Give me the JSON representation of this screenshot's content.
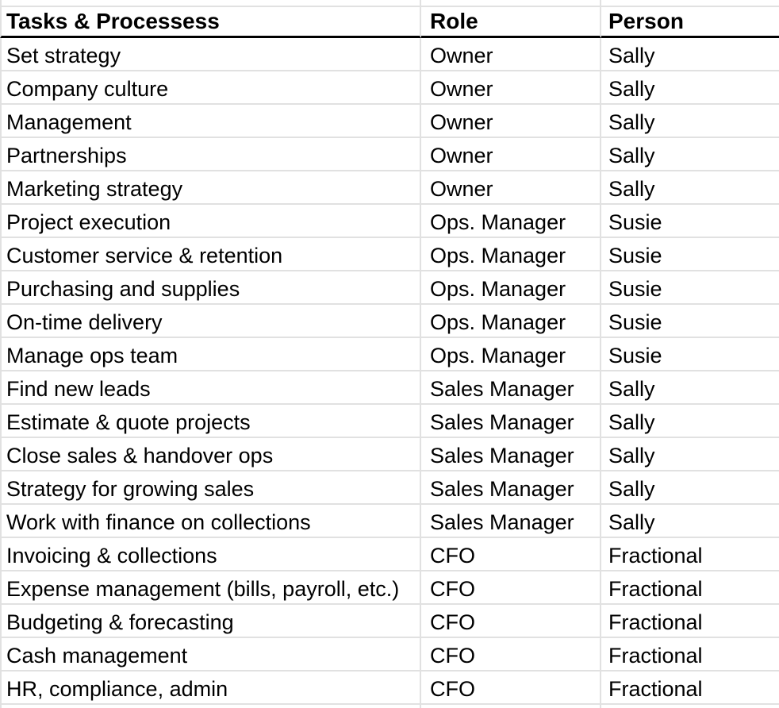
{
  "table": {
    "columns": [
      {
        "key": "task",
        "label": "Tasks & Processess"
      },
      {
        "key": "role",
        "label": "Role"
      },
      {
        "key": "person",
        "label": "Person"
      }
    ],
    "rows": [
      [
        "Set strategy",
        "Owner",
        "Sally"
      ],
      [
        "Company culture",
        "Owner",
        "Sally"
      ],
      [
        "Management",
        "Owner",
        "Sally"
      ],
      [
        "Partnerships",
        "Owner",
        "Sally"
      ],
      [
        "Marketing strategy",
        "Owner",
        "Sally"
      ],
      [
        "Project execution",
        "Ops. Manager",
        "Susie"
      ],
      [
        "Customer service & retention",
        "Ops. Manager",
        "Susie"
      ],
      [
        "Purchasing and supplies",
        "Ops. Manager",
        "Susie"
      ],
      [
        "On-time delivery",
        "Ops. Manager",
        "Susie"
      ],
      [
        "Manage ops team",
        "Ops. Manager",
        "Susie"
      ],
      [
        "Find new leads",
        "Sales Manager",
        "Sally"
      ],
      [
        "Estimate & quote projects",
        "Sales Manager",
        "Sally"
      ],
      [
        "Close sales & handover ops",
        "Sales Manager",
        "Sally"
      ],
      [
        "Strategy for growing sales",
        "Sales Manager",
        "Sally"
      ],
      [
        "Work with finance on collections",
        "Sales Manager",
        "Sally"
      ],
      [
        "Invoicing & collections",
        "CFO",
        "Fractional"
      ],
      [
        "Expense management (bills, payroll, etc.)",
        "CFO",
        "Fractional"
      ],
      [
        "Budgeting & forecasting",
        "CFO",
        "Fractional"
      ],
      [
        "Cash management",
        "CFO",
        "Fractional"
      ],
      [
        "HR, compliance, admin",
        "CFO",
        "Fractional"
      ]
    ],
    "colors": {
      "grid_line": "#e1e1e1",
      "header_underline": "#000000",
      "text": "#000000",
      "background": "#ffffff"
    }
  }
}
